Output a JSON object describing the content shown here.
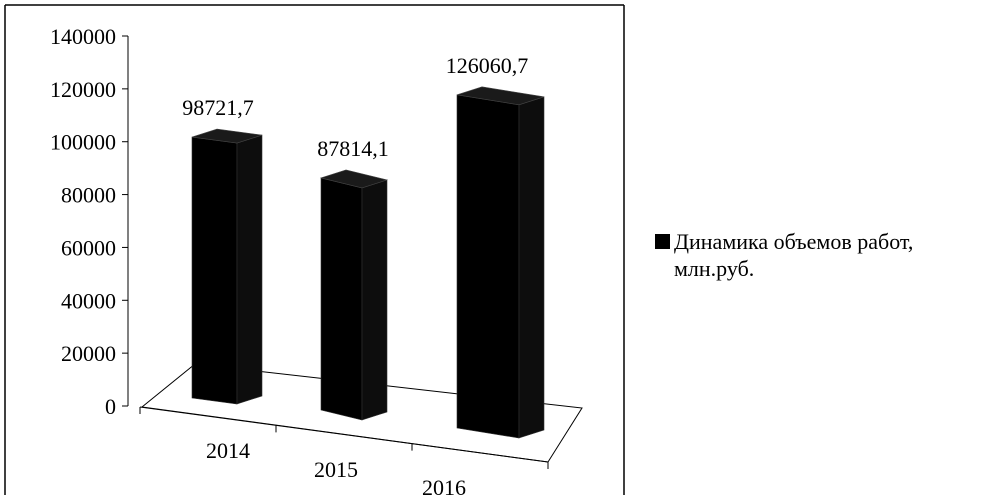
{
  "chart_data": {
    "type": "bar",
    "title": "",
    "xlabel": "",
    "ylabel": "",
    "categories": [
      "2014",
      "2015",
      "2016"
    ],
    "series": [
      {
        "name": "Динамика объемов работ, млн.руб.",
        "values": [
          98721.7,
          87814.1,
          126060.7
        ],
        "value_labels": [
          "98721,7",
          "87814,1",
          "126060,7"
        ],
        "color": "#000000"
      }
    ],
    "ylim": [
      0,
      140000
    ],
    "yticks": [
      "0",
      "20000",
      "40000",
      "60000",
      "80000",
      "100000",
      "120000",
      "140000"
    ],
    "grid": false,
    "legend_position": "right",
    "style": "3d-column"
  }
}
